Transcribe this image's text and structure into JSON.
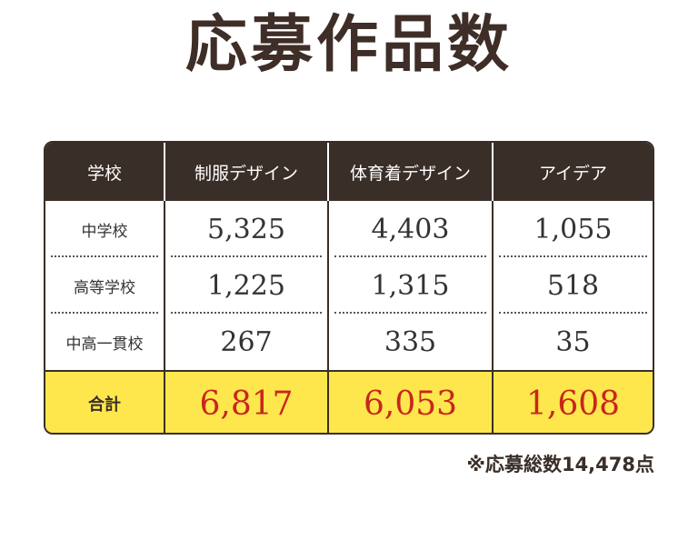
{
  "title": "応募作品数",
  "table": {
    "headers": [
      "学校",
      "制服デザイン",
      "体育着デザイン",
      "アイデア"
    ],
    "rows": [
      {
        "label": "中学校",
        "values": [
          "5,325",
          "4,403",
          "1,055"
        ]
      },
      {
        "label": "高等学校",
        "values": [
          "1,225",
          "1,315",
          "518"
        ]
      },
      {
        "label": "中高一貫校",
        "values": [
          "267",
          "335",
          "35"
        ]
      }
    ],
    "total": {
      "label": "合計",
      "values": [
        "6,817",
        "6,053",
        "1,608"
      ]
    }
  },
  "note": "※応募総数14,478点",
  "colors": {
    "header_bg": "#3a2e28",
    "total_bg": "#fde74c",
    "total_text": "#c8261c",
    "title_text": "#3e2e27"
  }
}
